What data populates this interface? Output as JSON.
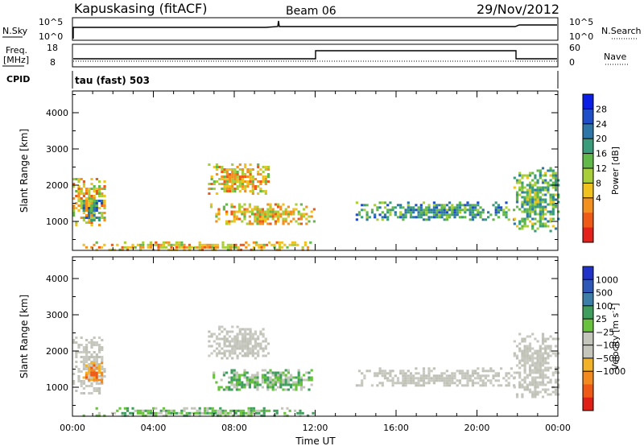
{
  "header": {
    "station": "Kapuskasing (fitACF)",
    "beam": "Beam 06",
    "date": "29/Nov/2012",
    "cpid_label": "CPID",
    "cpid_value": "tau (fast) 503"
  },
  "strip_panels": {
    "nsky": {
      "label": "N.Sky",
      "ticks": [
        "10^5",
        "10^0"
      ]
    },
    "nsearch": {
      "label": "N.Search",
      "ticks": [
        "10^5",
        "10^0"
      ]
    },
    "freq": {
      "label_line1": "Freq.",
      "label_line2": "[MHz]",
      "ticks": [
        "18",
        "8"
      ]
    },
    "nave": {
      "label": "Nave",
      "ticks": [
        "60",
        "0"
      ]
    }
  },
  "chart_data": [
    {
      "type": "heatmap",
      "name": "power",
      "ylabel": "Slant Range [km]",
      "ylim": [
        200,
        4600
      ],
      "yticks": [
        1000,
        2000,
        3000,
        4000
      ],
      "xlim": [
        0,
        24
      ],
      "colorbar": {
        "label": "Power [dB]",
        "ticks": [
          "28",
          "24",
          "20",
          "16",
          "12",
          "8",
          "4"
        ],
        "colors": [
          "#0a1ee6",
          "#1f4fc8",
          "#2e76a8",
          "#3a9c7a",
          "#63b84a",
          "#a8cf3a",
          "#f1c21e",
          "#f39120",
          "#ef5a17",
          "#e4211a"
        ]
      },
      "echo_regions": [
        {
          "t0": 0.0,
          "t1": 1.6,
          "r0": 900,
          "r1": 2200,
          "level": 3
        },
        {
          "t0": 0.5,
          "t1": 1.4,
          "r0": 1000,
          "r1": 1600,
          "level": 6
        },
        {
          "t0": 6.7,
          "t1": 9.7,
          "r0": 1750,
          "r1": 2600,
          "level": 3
        },
        {
          "t0": 6.8,
          "t1": 12.0,
          "r0": 900,
          "r1": 1500,
          "level": 3
        },
        {
          "t0": 14.0,
          "t1": 21.8,
          "r0": 1050,
          "r1": 1550,
          "level": 6
        },
        {
          "t0": 21.8,
          "t1": 24.0,
          "r0": 700,
          "r1": 2500,
          "level": 5
        },
        {
          "t0": 0.5,
          "t1": 12.0,
          "r0": 220,
          "r1": 450,
          "level": 3
        }
      ]
    },
    {
      "type": "heatmap",
      "name": "velocity",
      "ylabel": "Slant Range [km]",
      "ylim": [
        200,
        4600
      ],
      "yticks": [
        1000,
        2000,
        3000,
        4000
      ],
      "xlim": [
        0,
        24
      ],
      "xticks": [
        "00:00",
        "04:00",
        "08:00",
        "12:00",
        "16:00",
        "20:00",
        "00:00"
      ],
      "xlabel": "Time UT",
      "colorbar": {
        "label": "Velocity [m s",
        "label_sup": "-1",
        "label_end": "]",
        "ticks": [
          "1000",
          "500",
          "100",
          "25",
          "−25",
          "−100",
          "−500",
          "−1000"
        ],
        "colors": [
          "#2032c8",
          "#2d58b8",
          "#3c7ea8",
          "#3f9e5e",
          "#69c23e",
          "#c4c6bc",
          "#c4c6bc",
          "#f1b22a",
          "#f28a20",
          "#ee5a16",
          "#e01f15"
        ]
      },
      "echo_regions": [
        {
          "t0": 0.0,
          "t1": 1.6,
          "r0": 800,
          "r1": 2400,
          "level": "grey"
        },
        {
          "t0": 0.5,
          "t1": 1.5,
          "r0": 1100,
          "r1": 1700,
          "level": "orange"
        },
        {
          "t0": 6.7,
          "t1": 9.7,
          "r0": 1800,
          "r1": 2700,
          "level": "grey"
        },
        {
          "t0": 6.8,
          "t1": 12.0,
          "r0": 900,
          "r1": 1500,
          "level": "green"
        },
        {
          "t0": 14.0,
          "t1": 21.8,
          "r0": 1050,
          "r1": 1550,
          "level": "grey"
        },
        {
          "t0": 21.8,
          "t1": 24.0,
          "r0": 700,
          "r1": 2500,
          "level": "grey"
        },
        {
          "t0": 0.5,
          "t1": 12.0,
          "r0": 220,
          "r1": 450,
          "level": "green"
        }
      ]
    }
  ]
}
